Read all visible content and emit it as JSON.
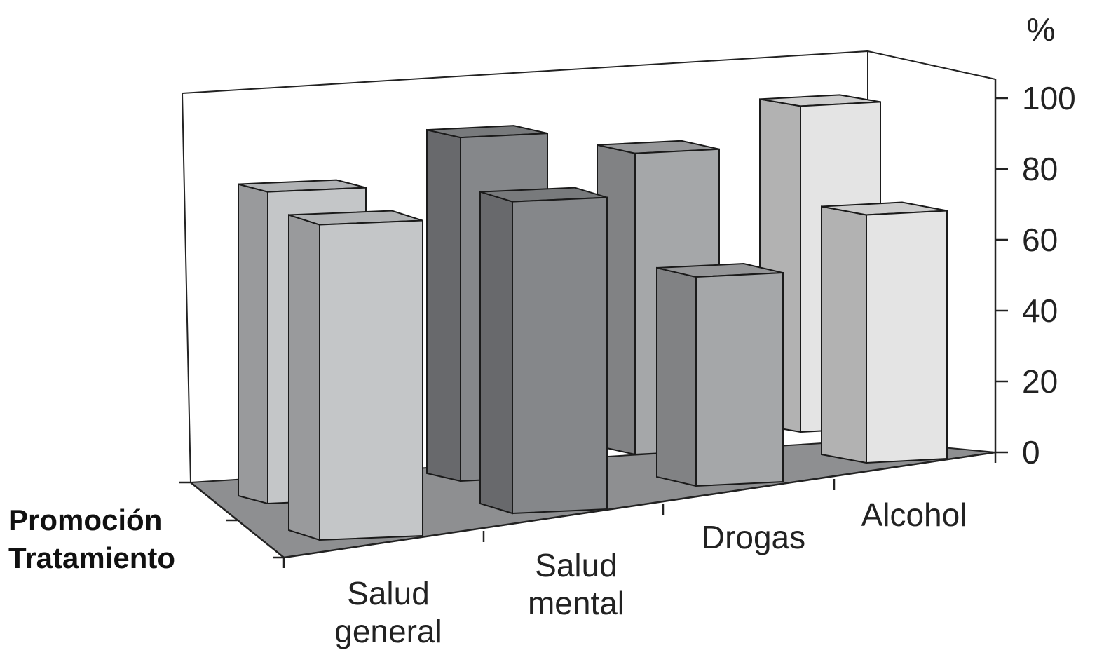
{
  "chart_data": {
    "type": "bar",
    "subtype": "3d-grouped",
    "unit_label": "%",
    "ylim": [
      0,
      100
    ],
    "yticks": [
      0,
      20,
      40,
      60,
      80,
      100
    ],
    "grid": false,
    "categories": [
      [
        "Salud",
        "general"
      ],
      [
        "Salud",
        "mental"
      ],
      [
        "Drogas"
      ],
      [
        "Alcohol"
      ]
    ],
    "series": [
      {
        "name": "Promoción",
        "values": [
          88,
          97,
          85,
          92
        ]
      },
      {
        "name": "Tratamiento",
        "values": [
          89,
          88,
          59,
          70
        ]
      }
    ],
    "colors": {
      "Salud general": "#c4c6c8",
      "Salud mental": "#85878a",
      "Drogas": "#a5a7a9",
      "Alcohol": "#e4e4e4",
      "floor": "#8e8f91",
      "outline": "#1a1a1a"
    }
  }
}
